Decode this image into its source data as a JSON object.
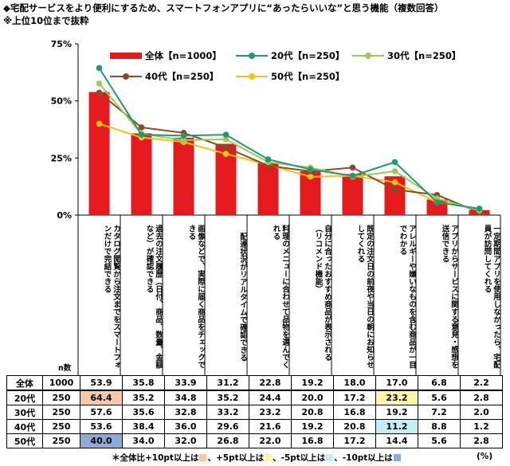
{
  "title": {
    "line1": "◆宅配サービスをより便利にするため、スマートフォンアプリに“あったらいいな”と思う機能（複数回答）",
    "line2": "※上位10位まで抜粋"
  },
  "legend": {
    "total": "全体【n=1000】",
    "s20": "20代【n=250】",
    "s30": "30代【n=250】",
    "s40": "40代【n=250】",
    "s50": "50代【n=250】"
  },
  "n_label": "n数",
  "footnote": {
    "lead": "＊全体比+10pt以上は",
    "p5": "、+5pt以上は",
    "m5": "、-5pt以上は",
    "m10": "、-10pt以上は"
  },
  "unit": "(%)",
  "colors": {
    "total": "#e41a1c",
    "s20": "#1f9a73",
    "s30": "#9ccc55",
    "s40": "#8b4a2b",
    "s50": "#f5c211",
    "highlight_plus10": "#f7c8a6",
    "highlight_plus5": "#fff5a6",
    "highlight_minus5": "#c4eef8",
    "highlight_minus10": "#8ea9dc"
  },
  "chart_data": {
    "type": "bar",
    "ylim": [
      0,
      75
    ],
    "yticks": [
      0,
      25,
      50,
      75
    ],
    "ytick_labels": [
      "0%",
      "25%",
      "50%",
      "75%"
    ],
    "grid": false,
    "legend_placement": "top",
    "categories": [
      "カタログ閲覧から注文までをスマートフォンだけで完結できる",
      "過去の注文履歴（日付、商品、数量、金額など）が確認できる",
      "画像などで、実際に届く商品をチェックできる",
      "配達状況がリアルタイムで確認できる",
      "料理のメニューに合わせて品物を選んでくれる",
      "自分に合ったおすすめ商品が表示される（リコメンド機能）",
      "既定の注文日の前夜や当日の朝にお知らせしてくれる",
      "アレルギーや嫌いなものを含む商品が一目でわかる",
      "アプリからサービスに関する意見・感想を送信できる",
      "一定期間アプリを使用しなかったら、宅配員が訪問してくれる"
    ],
    "series": [
      {
        "name": "全体",
        "n": "1000",
        "type": "bar",
        "values": [
          53.9,
          35.8,
          33.9,
          31.2,
          22.8,
          19.2,
          18.0,
          17.0,
          6.8,
          2.2
        ]
      },
      {
        "name": "20代",
        "n": "250",
        "type": "line",
        "values": [
          64.4,
          35.2,
          34.8,
          35.2,
          24.4,
          20.0,
          17.2,
          23.2,
          5.6,
          2.8
        ]
      },
      {
        "name": "30代",
        "n": "250",
        "type": "line",
        "values": [
          57.6,
          35.6,
          32.8,
          33.2,
          23.2,
          20.8,
          16.8,
          19.2,
          7.2,
          2.0
        ]
      },
      {
        "name": "40代",
        "n": "250",
        "type": "line",
        "values": [
          53.6,
          38.4,
          36.0,
          29.6,
          21.6,
          19.2,
          20.8,
          11.2,
          8.8,
          1.2
        ]
      },
      {
        "name": "50代",
        "n": "250",
        "type": "line",
        "values": [
          40.0,
          34.0,
          32.0,
          26.8,
          22.0,
          16.8,
          17.2,
          14.4,
          5.6,
          2.8
        ]
      }
    ],
    "table": {
      "rows": [
        {
          "group": "全体",
          "n": "1000",
          "values": [
            "53.9",
            "35.8",
            "33.9",
            "31.2",
            "22.8",
            "19.2",
            "18.0",
            "17.0",
            "6.8",
            "2.2"
          ],
          "highlight": [
            "",
            "",
            "",
            "",
            "",
            "",
            "",
            "",
            "",
            ""
          ]
        },
        {
          "group": "20代",
          "n": "250",
          "values": [
            "64.4",
            "35.2",
            "34.8",
            "35.2",
            "24.4",
            "20.0",
            "17.2",
            "23.2",
            "5.6",
            "2.8"
          ],
          "highlight": [
            "plus10",
            "",
            "",
            "",
            "",
            "",
            "",
            "plus5",
            "",
            ""
          ]
        },
        {
          "group": "30代",
          "n": "250",
          "values": [
            "57.6",
            "35.6",
            "32.8",
            "33.2",
            "23.2",
            "20.8",
            "16.8",
            "19.2",
            "7.2",
            "2.0"
          ],
          "highlight": [
            "",
            "",
            "",
            "",
            "",
            "",
            "",
            "",
            "",
            ""
          ]
        },
        {
          "group": "40代",
          "n": "250",
          "values": [
            "53.6",
            "38.4",
            "36.0",
            "29.6",
            "21.6",
            "19.2",
            "20.8",
            "11.2",
            "8.8",
            "1.2"
          ],
          "highlight": [
            "",
            "",
            "",
            "",
            "",
            "",
            "",
            "minus5",
            "",
            ""
          ]
        },
        {
          "group": "50代",
          "n": "250",
          "values": [
            "40.0",
            "34.0",
            "32.0",
            "26.8",
            "22.0",
            "16.8",
            "17.2",
            "14.4",
            "5.6",
            "2.8"
          ],
          "highlight": [
            "minus10",
            "",
            "",
            "",
            "",
            "",
            "",
            "",
            "",
            ""
          ]
        }
      ]
    }
  }
}
